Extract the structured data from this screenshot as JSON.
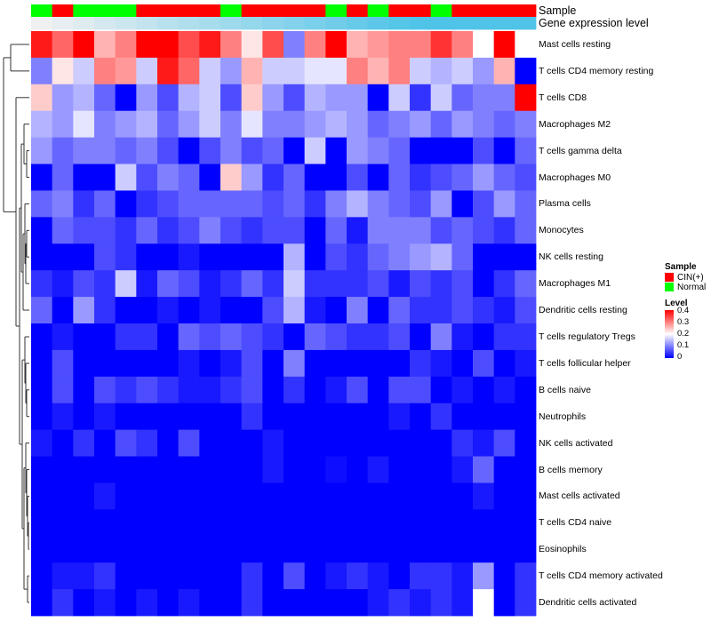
{
  "chart_data": {
    "type": "heatmap",
    "title": "",
    "annotations": [
      {
        "name": "Sample",
        "values": [
          1,
          0,
          1,
          1,
          1,
          0,
          0,
          0,
          0,
          1,
          0,
          0,
          0,
          0,
          1,
          0,
          1,
          0,
          0,
          1,
          0,
          0,
          0,
          0
        ]
      },
      {
        "name": "Gene expression level",
        "values": [
          0.0,
          0.02,
          0.04,
          0.06,
          0.08,
          0.1,
          0.12,
          0.14,
          0.16,
          0.18,
          0.2,
          0.22,
          0.24,
          0.26,
          0.28,
          0.3,
          0.32,
          0.34,
          0.36,
          0.38,
          0.4,
          0.42,
          0.44,
          0.46
        ]
      }
    ],
    "rows": [
      "Mast cells resting",
      "T cells CD4 memory resting",
      "T cells CD8",
      "Macrophages M2",
      "T cells gamma delta",
      "Macrophages M0",
      "Plasma cells",
      "Monocytes",
      "NK cells resting",
      "Macrophages M1",
      "Dendritic cells resting",
      "T cells regulatory  Tregs",
      "T cells follicular helper",
      "B cells naive",
      "Neutrophils",
      "NK cells activated",
      "B cells memory",
      "Mast cells activated",
      "T cells CD4 naive",
      "Eosinophils",
      "T cells CD4 memory activated",
      "Dendritic cells activated"
    ],
    "values": [
      [
        0.38,
        0.32,
        0.4,
        0.26,
        0.3,
        0.4,
        0.4,
        0.34,
        0.38,
        0.3,
        0.22,
        0.34,
        0.1,
        0.3,
        0.4,
        0.26,
        0.28,
        0.3,
        0.3,
        0.36,
        0.3,
        0.2,
        0.4,
        0.2
      ],
      [
        0.1,
        0.22,
        0.16,
        0.3,
        0.28,
        0.16,
        0.38,
        0.32,
        0.16,
        0.12,
        0.26,
        0.16,
        0.16,
        0.18,
        0.18,
        0.3,
        0.26,
        0.3,
        0.16,
        0.14,
        0.16,
        0.12,
        0.26,
        0.0
      ],
      [
        0.24,
        0.12,
        0.14,
        0.08,
        0.0,
        0.12,
        0.06,
        0.14,
        0.16,
        0.06,
        0.24,
        0.12,
        0.06,
        0.14,
        0.12,
        0.12,
        0.0,
        0.16,
        0.04,
        0.16,
        0.08,
        0.1,
        0.1,
        0.4
      ],
      [
        0.14,
        0.12,
        0.18,
        0.1,
        0.12,
        0.14,
        0.08,
        0.12,
        0.16,
        0.1,
        0.18,
        0.1,
        0.1,
        0.12,
        0.14,
        0.12,
        0.08,
        0.1,
        0.12,
        0.08,
        0.12,
        0.1,
        0.08,
        0.1
      ],
      [
        0.12,
        0.08,
        0.1,
        0.1,
        0.08,
        0.1,
        0.06,
        0.0,
        0.06,
        0.1,
        0.06,
        0.08,
        0.0,
        0.16,
        0.0,
        0.12,
        0.1,
        0.08,
        0.0,
        0.0,
        0.0,
        0.06,
        0.0,
        0.08
      ],
      [
        0.0,
        0.08,
        0.0,
        0.0,
        0.16,
        0.06,
        0.1,
        0.08,
        0.0,
        0.24,
        0.12,
        0.04,
        0.08,
        0.0,
        0.0,
        0.06,
        0.0,
        0.08,
        0.04,
        0.06,
        0.08,
        0.12,
        0.08,
        0.06
      ],
      [
        0.08,
        0.1,
        0.04,
        0.08,
        0.0,
        0.04,
        0.06,
        0.08,
        0.08,
        0.08,
        0.08,
        0.06,
        0.08,
        0.04,
        0.1,
        0.14,
        0.1,
        0.08,
        0.06,
        0.12,
        0.0,
        0.06,
        0.12,
        0.08
      ],
      [
        0.0,
        0.08,
        0.06,
        0.06,
        0.04,
        0.08,
        0.04,
        0.06,
        0.1,
        0.06,
        0.04,
        0.06,
        0.06,
        0.0,
        0.08,
        0.02,
        0.1,
        0.1,
        0.1,
        0.06,
        0.08,
        0.06,
        0.04,
        0.08
      ],
      [
        0.0,
        0.0,
        0.0,
        0.06,
        0.04,
        0.0,
        0.0,
        0.02,
        0.0,
        0.0,
        0.0,
        0.0,
        0.14,
        0.0,
        0.06,
        0.04,
        0.08,
        0.1,
        0.12,
        0.14,
        0.08,
        0.0,
        0.0,
        0.0
      ],
      [
        0.04,
        0.02,
        0.06,
        0.04,
        0.16,
        0.02,
        0.08,
        0.06,
        0.02,
        0.04,
        0.08,
        0.04,
        0.16,
        0.04,
        0.04,
        0.04,
        0.06,
        0.02,
        0.06,
        0.04,
        0.06,
        0.0,
        0.04,
        0.08
      ],
      [
        0.08,
        0.0,
        0.12,
        0.04,
        0.0,
        0.0,
        0.02,
        0.0,
        0.02,
        0.0,
        0.0,
        0.06,
        0.14,
        0.02,
        0.0,
        0.1,
        0.0,
        0.08,
        0.04,
        0.04,
        0.06,
        0.04,
        0.02,
        0.06
      ],
      [
        0.0,
        0.02,
        0.0,
        0.0,
        0.04,
        0.04,
        0.0,
        0.08,
        0.06,
        0.08,
        0.06,
        0.04,
        0.0,
        0.08,
        0.06,
        0.04,
        0.04,
        0.06,
        0.0,
        0.1,
        0.02,
        0.0,
        0.04,
        0.04
      ],
      [
        0.0,
        0.06,
        0.0,
        0.0,
        0.0,
        0.0,
        0.0,
        0.02,
        0.0,
        0.02,
        0.06,
        0.0,
        0.1,
        0.0,
        0.0,
        0.0,
        0.0,
        0.0,
        0.04,
        0.02,
        0.0,
        0.06,
        0.0,
        0.02
      ],
      [
        0.0,
        0.06,
        0.0,
        0.06,
        0.04,
        0.06,
        0.04,
        0.02,
        0.02,
        0.04,
        0.06,
        0.0,
        0.04,
        0.0,
        0.02,
        0.06,
        0.0,
        0.06,
        0.06,
        0.0,
        0.02,
        0.0,
        0.02,
        0.0
      ],
      [
        0.0,
        0.02,
        0.0,
        0.02,
        0.0,
        0.0,
        0.0,
        0.0,
        0.0,
        0.0,
        0.04,
        0.0,
        0.0,
        0.0,
        0.0,
        0.0,
        0.0,
        0.02,
        0.0,
        0.04,
        0.0,
        0.0,
        0.0,
        0.0
      ],
      [
        0.02,
        0.0,
        0.04,
        0.0,
        0.06,
        0.04,
        0.0,
        0.06,
        0.0,
        0.0,
        0.0,
        0.02,
        0.0,
        0.0,
        0.0,
        0.0,
        0.0,
        0.0,
        0.0,
        0.0,
        0.04,
        0.02,
        0.06,
        0.0
      ],
      [
        0.0,
        0.0,
        0.0,
        0.0,
        0.0,
        0.0,
        0.0,
        0.0,
        0.0,
        0.0,
        0.0,
        0.02,
        0.0,
        0.0,
        0.01,
        0.0,
        0.02,
        0.0,
        0.0,
        0.0,
        0.02,
        0.08,
        0.0,
        0.0
      ],
      [
        0.0,
        0.0,
        0.0,
        0.02,
        0.0,
        0.0,
        0.0,
        0.0,
        0.0,
        0.0,
        0.0,
        0.0,
        0.0,
        0.0,
        0.0,
        0.0,
        0.0,
        0.0,
        0.0,
        0.0,
        0.0,
        0.02,
        0.0,
        0.0
      ],
      [
        0.0,
        0.0,
        0.0,
        0.0,
        0.0,
        0.0,
        0.0,
        0.0,
        0.0,
        0.0,
        0.0,
        0.0,
        0.0,
        0.0,
        0.0,
        0.0,
        0.0,
        0.0,
        0.0,
        0.0,
        0.0,
        0.0,
        0.0,
        0.0
      ],
      [
        0.0,
        0.0,
        0.0,
        0.0,
        0.0,
        0.0,
        0.0,
        0.0,
        0.0,
        0.0,
        0.0,
        0.0,
        0.0,
        0.0,
        0.0,
        0.0,
        0.0,
        0.0,
        0.0,
        0.0,
        0.0,
        0.0,
        0.0,
        0.0
      ],
      [
        0.0,
        0.02,
        0.02,
        0.04,
        0.0,
        0.0,
        0.0,
        0.0,
        0.0,
        0.0,
        0.04,
        0.0,
        0.06,
        0.0,
        0.02,
        0.04,
        0.02,
        0.0,
        0.04,
        0.04,
        0.02,
        0.12,
        0.0,
        0.04
      ],
      [
        0.0,
        0.04,
        0.0,
        0.02,
        0.0,
        0.02,
        0.0,
        0.02,
        0.0,
        0.0,
        0.04,
        0.0,
        0.0,
        0.0,
        0.0,
        0.0,
        0.02,
        0.04,
        0.02,
        0.04,
        0.02,
        0.2,
        0.0,
        0.04
      ]
    ],
    "color_scale": {
      "min": 0,
      "mid": 0.2,
      "max": 0.4,
      "low": "#0000ff",
      "midcolor": "#ffffff",
      "high": "#ff0000"
    },
    "legends": {
      "sample": {
        "title": "Sample",
        "entries": [
          {
            "label": "CIN(+)",
            "color": "#ff0000"
          },
          {
            "label": "Normal",
            "color": "#00ff00"
          }
        ]
      },
      "level": {
        "title": "Level",
        "ticks": [
          "0.4",
          "0.3",
          "0.2",
          "0.1",
          "0"
        ]
      }
    },
    "annotation_colors": {
      "gene_low": "#f0f0f0",
      "gene_high": "#4fc3e8"
    },
    "row_dendrogram": true
  }
}
